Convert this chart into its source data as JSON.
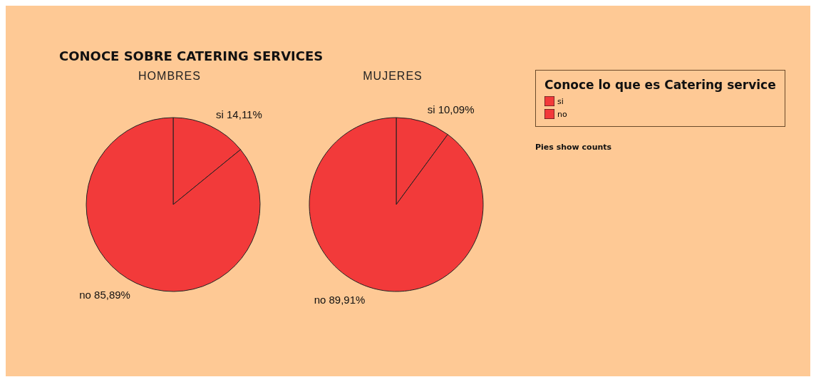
{
  "chart_data": [
    {
      "type": "pie",
      "title": "CONOCE SOBRE CATERING SERVICES",
      "subtitle": "HOMBRES",
      "categories": [
        "si",
        "no"
      ],
      "values": [
        14.11,
        85.89
      ],
      "value_labels": [
        "14,11%",
        "85,89%"
      ],
      "colors": [
        "#f23a3a",
        "#f23a3a"
      ],
      "legend": false
    },
    {
      "type": "pie",
      "subtitle": "MUJERES",
      "categories": [
        "si",
        "no"
      ],
      "values": [
        10.09,
        89.91
      ],
      "value_labels": [
        "10,09%",
        "89,91%"
      ],
      "colors": [
        "#f23a3a",
        "#f23a3a"
      ],
      "legend": "right",
      "legend_title": "Conoce lo que es Catering service",
      "annotations": [
        "Pies show counts"
      ]
    }
  ]
}
